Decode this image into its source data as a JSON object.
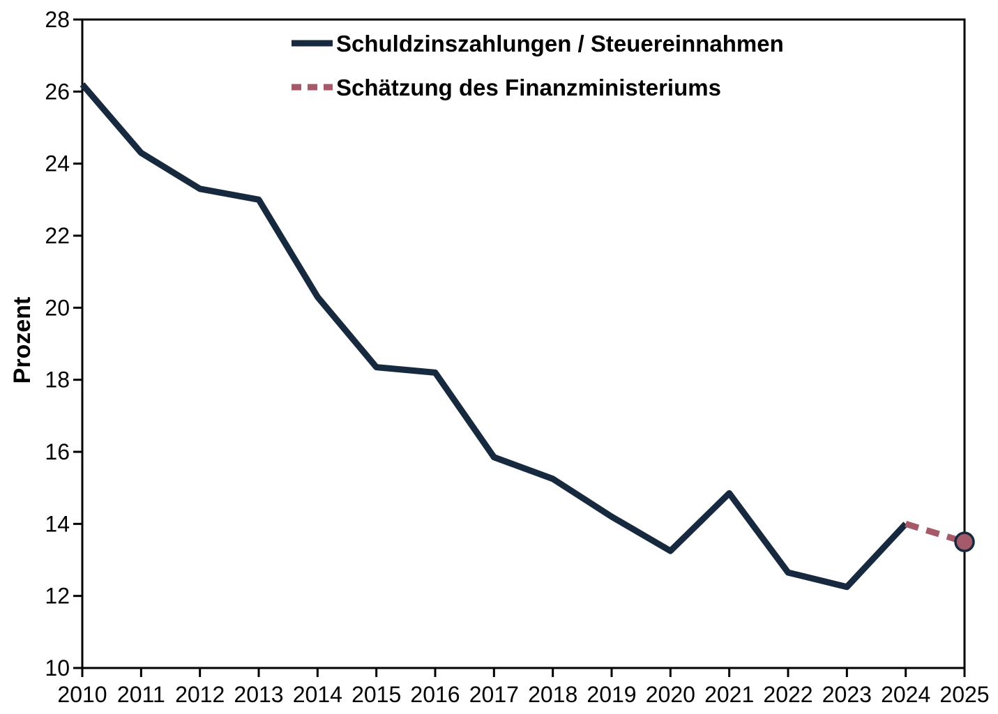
{
  "chart_data": {
    "type": "line",
    "title": "",
    "ylabel": "Prozent",
    "x_categories": [
      "2010",
      "2011",
      "2012",
      "2013",
      "2014",
      "2015",
      "2016",
      "2017",
      "2018",
      "2019",
      "2020",
      "2021",
      "2022",
      "2023",
      "2024",
      "2025"
    ],
    "ylim": [
      10,
      28
    ],
    "yticks": [
      10,
      12,
      14,
      16,
      18,
      20,
      22,
      24,
      26,
      28
    ],
    "grid": false,
    "legend_position": "top-inside",
    "axis_color": "#000000",
    "text_color": "#000000",
    "series": [
      {
        "name": "Schuldzinszahlungen / Steuereinnahmen",
        "style": "solid",
        "color": "#16293f",
        "years": [
          2010,
          2011,
          2012,
          2013,
          2014,
          2015,
          2016,
          2017,
          2018,
          2019,
          2020,
          2021,
          2022,
          2023,
          2024
        ],
        "values": [
          26.2,
          24.3,
          23.3,
          23.0,
          20.3,
          18.35,
          18.2,
          15.85,
          15.25,
          14.2,
          13.25,
          14.85,
          12.65,
          12.25,
          14.0
        ]
      },
      {
        "name": "Schätzung des Finanzministeriums",
        "style": "dashed",
        "color": "#a45a68",
        "years": [
          2024,
          2025
        ],
        "values": [
          14.0,
          13.5
        ],
        "end_marker": {
          "fill": "#a45a68",
          "border": "#16293f"
        }
      }
    ]
  }
}
